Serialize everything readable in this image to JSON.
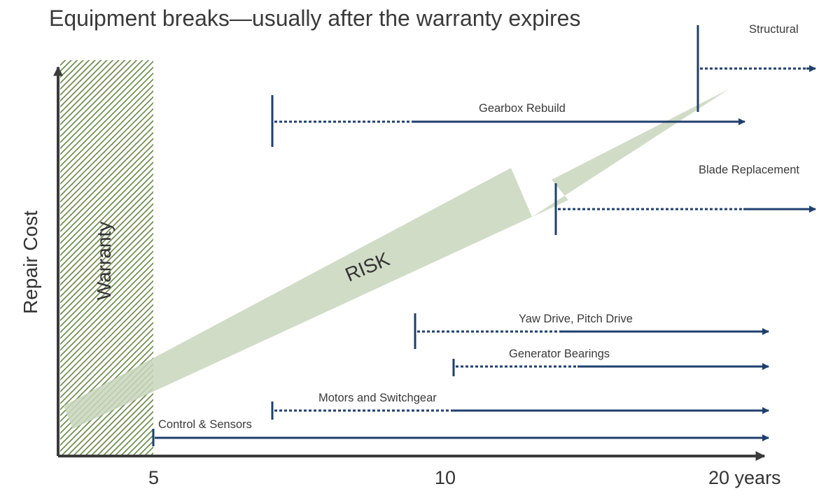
{
  "title": "Equipment breaks—usually after the warranty expires",
  "axes": {
    "y_label": "Repair Cost",
    "x_ticks": [
      "5",
      "10",
      "20 years"
    ]
  },
  "warranty": {
    "label": "Warranty"
  },
  "risk": {
    "label": "RISK"
  },
  "colors": {
    "bar": "#1f3f6e",
    "axis": "#3b3b3b",
    "risk_arrow": "#c9d6bd",
    "warranty_hatch": "#6d8a4c"
  },
  "bars": [
    {
      "label": "Structural"
    },
    {
      "label": "Gearbox Rebuild"
    },
    {
      "label": "Blade Replacement"
    },
    {
      "label": "Yaw Drive, Pitch Drive"
    },
    {
      "label": "Generator Bearings"
    },
    {
      "label": "Motors and Switchgear"
    },
    {
      "label": "Control & Sensors"
    }
  ]
}
